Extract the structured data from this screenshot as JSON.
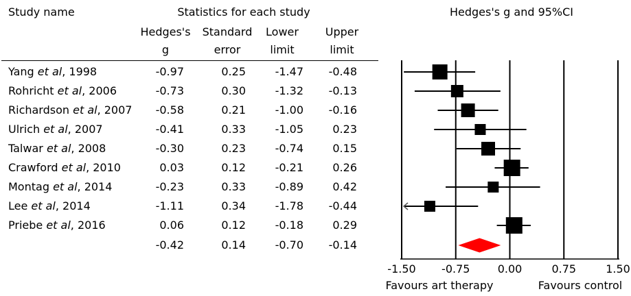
{
  "header": {
    "study_name": "Study name",
    "statistics_title": "Statistics for each study",
    "plot_title": "Hedges's g and 95%CI",
    "col_g_line1": "Hedges's",
    "col_g_line2": "g",
    "col_se_line1": "Standard",
    "col_se_line2": "error",
    "col_lower_line1": "Lower",
    "col_lower_line2": "limit",
    "col_upper_line1": "Upper",
    "col_upper_line2": "limit"
  },
  "studies": [
    {
      "author": "Yang ",
      "etal": "et al",
      "year": ", 1998",
      "g": "-0.97",
      "se": "0.25",
      "lower": "-1.47",
      "upper": "-0.48"
    },
    {
      "author": "Rohricht ",
      "etal": "et al",
      "year": ", 2006",
      "g": "-0.73",
      "se": "0.30",
      "lower": "-1.32",
      "upper": "-0.13"
    },
    {
      "author": "Richardson ",
      "etal": "et al",
      "year": ", 2007",
      "g": "-0.58",
      "se": "0.21",
      "lower": "-1.00",
      "upper": "-0.16"
    },
    {
      "author": "Ulrich ",
      "etal": "et al",
      "year": ", 2007",
      "g": "-0.41",
      "se": "0.33",
      "lower": "-1.05",
      "upper": "0.23"
    },
    {
      "author": "Talwar ",
      "etal": "et al",
      "year": ", 2008",
      "g": "-0.30",
      "se": "0.23",
      "lower": "-0.74",
      "upper": "0.15"
    },
    {
      "author": "Crawford ",
      "etal": "et al",
      "year": ", 2010",
      "g": "0.03",
      "se": "0.12",
      "lower": "-0.21",
      "upper": "0.26"
    },
    {
      "author": "Montag ",
      "etal": "et al",
      "year": ", 2014",
      "g": "-0.23",
      "se": "0.33",
      "lower": "-0.89",
      "upper": "0.42"
    },
    {
      "author": "Lee ",
      "etal": "et al",
      "year": ", 2014",
      "g": "-1.11",
      "se": "0.34",
      "lower": "-1.78",
      "upper": "-0.44"
    },
    {
      "author": "Priebe ",
      "etal": "et al",
      "year": ", 2016",
      "g": "0.06",
      "se": "0.12",
      "lower": "-0.18",
      "upper": "0.29"
    }
  ],
  "summary": {
    "g": "-0.42",
    "se": "0.14",
    "lower": "-0.70",
    "upper": "-0.14"
  },
  "footer": {
    "left": "Favours art therapy",
    "right": "Favours control"
  },
  "colors": {
    "summary_diamond": "#ff0000",
    "markers": "#000000"
  },
  "chart_data": {
    "type": "forest",
    "title": "Hedges's g and 95%CI",
    "xlim": [
      -1.5,
      1.5
    ],
    "xticks": [
      -1.5,
      -0.75,
      0.0,
      0.75,
      1.5
    ],
    "xtick_labels": [
      "-1.50",
      "-0.75",
      "0.00",
      "0.75",
      "1.50"
    ],
    "grid": "vertical lines at ticks",
    "studies": [
      {
        "name": "Yang et al, 1998",
        "g": -0.97,
        "lower": -1.47,
        "upper": -0.48
      },
      {
        "name": "Rohricht et al, 2006",
        "g": -0.73,
        "lower": -1.32,
        "upper": -0.13
      },
      {
        "name": "Richardson et al, 2007",
        "g": -0.58,
        "lower": -1.0,
        "upper": -0.16
      },
      {
        "name": "Ulrich et al, 2007",
        "g": -0.41,
        "lower": -1.05,
        "upper": 0.23
      },
      {
        "name": "Talwar et al, 2008",
        "g": -0.3,
        "lower": -0.74,
        "upper": 0.15
      },
      {
        "name": "Crawford et al, 2010",
        "g": 0.03,
        "lower": -0.21,
        "upper": 0.26
      },
      {
        "name": "Montag et al, 2014",
        "g": -0.23,
        "lower": -0.89,
        "upper": 0.42
      },
      {
        "name": "Lee et al, 2014",
        "g": -1.11,
        "lower": -1.78,
        "upper": -0.44
      },
      {
        "name": "Priebe et al, 2016",
        "g": 0.06,
        "lower": -0.18,
        "upper": 0.29
      }
    ],
    "summary": {
      "g": -0.42,
      "lower": -0.7,
      "upper": -0.14
    },
    "xlabel_left": "Favours art therapy",
    "xlabel_right": "Favours control"
  }
}
